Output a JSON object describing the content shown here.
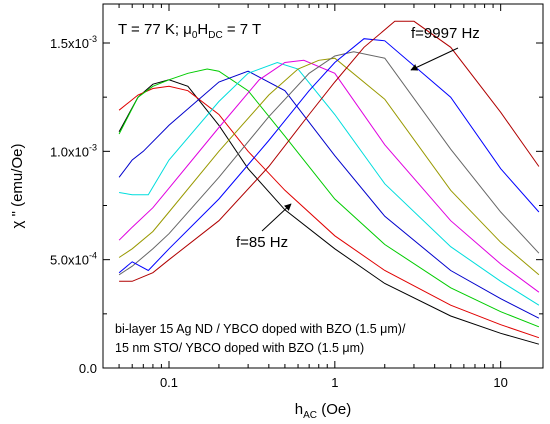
{
  "chart_data": {
    "type": "line",
    "title": "",
    "xlabel": "h",
    "xlabel_sub": "AC",
    "xlabel_unit": " (Oe)",
    "ylabel": "χ \" (emu/Oe)",
    "x_scale": "log",
    "xlim": [
      0.04,
      18
    ],
    "ylim": [
      0,
      0.00168
    ],
    "grid": false,
    "x_tick_labels": [
      "0.1",
      "1",
      "10"
    ],
    "x_ticks": [
      0.1,
      1,
      10
    ],
    "y_tick_labels": [
      "0.0",
      "5.0x10",
      "1.0x10",
      "1.5x10"
    ],
    "y_tick_exponents": [
      "",
      "-4",
      "-3",
      "-3"
    ],
    "y_ticks": [
      0,
      0.0005,
      0.001,
      0.0015
    ],
    "annotations": {
      "conditions": {
        "prefix": "T = 77 K; μ",
        "sub1": "0",
        "mid": "H",
        "sub2": "DC",
        "suffix": " = 7 T"
      },
      "f_high": "f=9997 Hz",
      "f_low": "f=85 Hz",
      "sample_line1": "bi-layer 15 Ag ND / YBCO doped with BZO (1.5 μm)/",
      "sample_line2": "15 nm STO/ YBCO doped with BZO (1.5 μm)"
    },
    "series": [
      {
        "color": "#000000",
        "x": [
          0.05,
          0.065,
          0.08,
          0.1,
          0.13,
          0.2,
          0.3,
          0.5,
          1,
          2,
          5,
          10,
          17
        ],
        "y": [
          0.00109,
          0.00125,
          0.00131,
          0.00133,
          0.0013,
          0.00112,
          0.00092,
          0.00073,
          0.00055,
          0.00039,
          0.00024,
          0.00016,
          0.00011
        ]
      },
      {
        "color": "#e00000",
        "x": [
          0.05,
          0.065,
          0.08,
          0.1,
          0.13,
          0.2,
          0.3,
          0.5,
          1,
          2,
          5,
          10,
          17
        ],
        "y": [
          0.00119,
          0.00126,
          0.00129,
          0.0013,
          0.00128,
          0.00117,
          0.001,
          0.00082,
          0.00061,
          0.00045,
          0.00029,
          0.0002,
          0.00014
        ]
      },
      {
        "color": "#00cc00",
        "x": [
          0.05,
          0.065,
          0.08,
          0.1,
          0.13,
          0.17,
          0.2,
          0.3,
          0.5,
          1,
          2,
          5,
          10,
          17
        ],
        "y": [
          0.00108,
          0.00125,
          0.0013,
          0.00133,
          0.00136,
          0.00138,
          0.00137,
          0.00128,
          0.00107,
          0.00078,
          0.00057,
          0.00037,
          0.00026,
          0.00019
        ]
      },
      {
        "color": "#0000cc",
        "x": [
          0.05,
          0.06,
          0.07,
          0.1,
          0.2,
          0.3,
          0.5,
          1,
          2,
          5,
          10,
          17
        ],
        "y": [
          0.00088,
          0.00096,
          0.001,
          0.00112,
          0.00132,
          0.00137,
          0.00128,
          0.00098,
          0.0007,
          0.00045,
          0.00032,
          0.00023
        ]
      },
      {
        "color": "#00dddd",
        "x": [
          0.05,
          0.06,
          0.075,
          0.1,
          0.2,
          0.3,
          0.45,
          0.6,
          1,
          2,
          5,
          10,
          17
        ],
        "y": [
          0.00081,
          0.0008,
          0.0008,
          0.00096,
          0.00123,
          0.00136,
          0.00141,
          0.00138,
          0.00117,
          0.00085,
          0.00056,
          0.0004,
          0.00029
        ]
      },
      {
        "color": "#e000e0",
        "x": [
          0.05,
          0.06,
          0.08,
          0.1,
          0.2,
          0.35,
          0.5,
          0.65,
          1,
          2,
          5,
          10,
          17
        ],
        "y": [
          0.00059,
          0.00065,
          0.00074,
          0.00083,
          0.00111,
          0.00133,
          0.00141,
          0.00142,
          0.00136,
          0.00103,
          0.00068,
          0.00048,
          0.00035
        ]
      },
      {
        "color": "#999900",
        "x": [
          0.05,
          0.06,
          0.08,
          0.1,
          0.2,
          0.4,
          0.6,
          0.8,
          1,
          2,
          5,
          10,
          17
        ],
        "y": [
          0.00051,
          0.00055,
          0.00063,
          0.00072,
          0.001,
          0.00126,
          0.00138,
          0.00142,
          0.00143,
          0.00124,
          0.00082,
          0.00058,
          0.00043
        ]
      },
      {
        "color": "#666666",
        "x": [
          0.05,
          0.06,
          0.08,
          0.1,
          0.2,
          0.4,
          0.7,
          1,
          1.3,
          2,
          5,
          10,
          17
        ],
        "y": [
          0.00043,
          0.00047,
          0.00055,
          0.00062,
          0.00088,
          0.00116,
          0.00136,
          0.00144,
          0.00146,
          0.00143,
          0.00101,
          0.00072,
          0.00053
        ]
      },
      {
        "color": "#0000ff",
        "x": [
          0.05,
          0.06,
          0.075,
          0.1,
          0.2,
          0.4,
          0.7,
          1,
          1.5,
          2,
          5,
          10,
          17
        ],
        "y": [
          0.00044,
          0.00049,
          0.00045,
          0.00055,
          0.00078,
          0.00105,
          0.00128,
          0.00141,
          0.00152,
          0.00151,
          0.00125,
          0.00092,
          0.00072
        ]
      },
      {
        "color": "#b00000",
        "x": [
          0.05,
          0.06,
          0.08,
          0.1,
          0.2,
          0.4,
          0.7,
          1,
          1.5,
          2.3,
          3,
          5,
          10,
          17
        ],
        "y": [
          0.0004,
          0.0004,
          0.00044,
          0.0005,
          0.00068,
          0.00093,
          0.00117,
          0.00132,
          0.00148,
          0.0016,
          0.0016,
          0.00148,
          0.00118,
          0.00093
        ]
      }
    ]
  }
}
